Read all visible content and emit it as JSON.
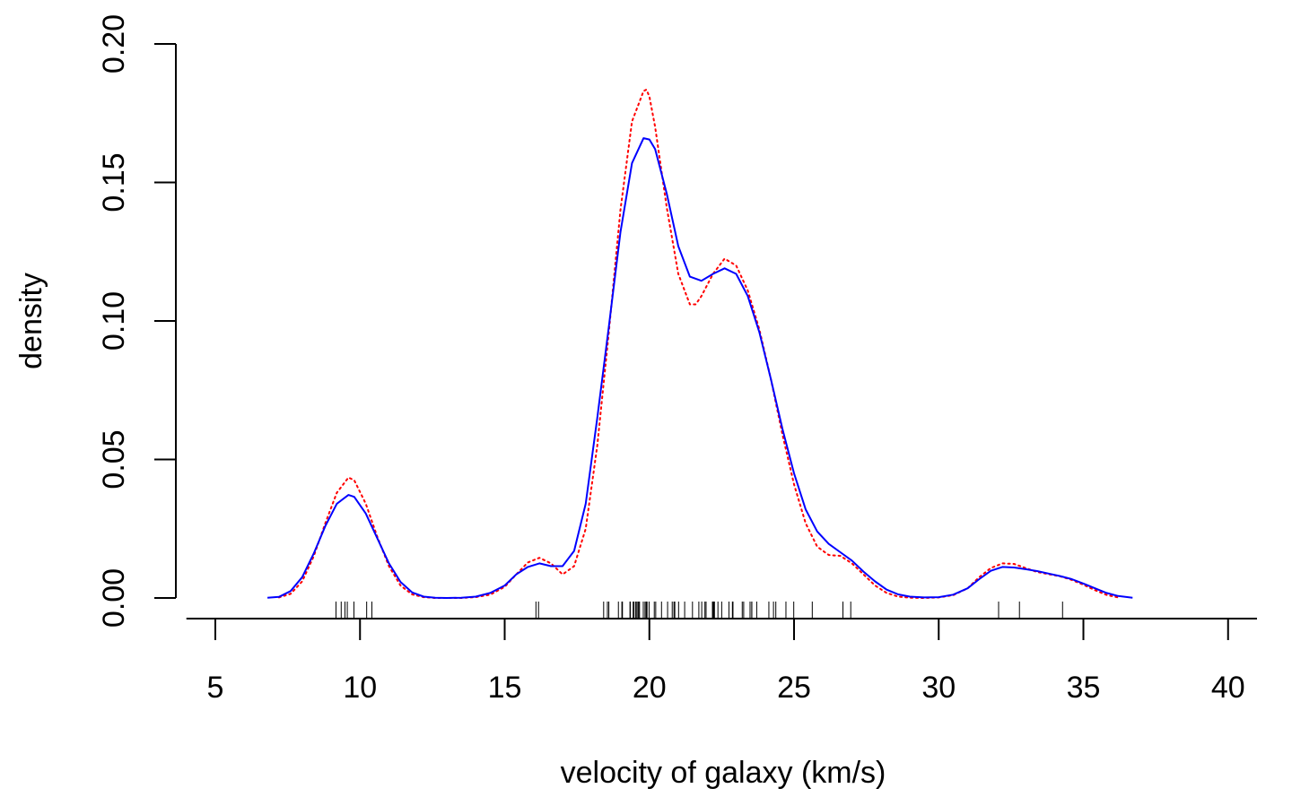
{
  "chart_data": {
    "type": "line",
    "title": "",
    "xlabel": "velocity of galaxy (km/s)",
    "ylabel": "density",
    "xlim": [
      4,
      41
    ],
    "ylim": [
      0,
      0.2
    ],
    "x_ticks": [
      5,
      10,
      15,
      20,
      25,
      30,
      35,
      40
    ],
    "x_tick_labels": [
      "5",
      "10",
      "15",
      "20",
      "25",
      "30",
      "35",
      "40"
    ],
    "y_ticks": [
      0.0,
      0.05,
      0.1,
      0.15,
      0.2
    ],
    "y_tick_labels": [
      "0.00",
      "0.05",
      "0.10",
      "0.15",
      "0.20"
    ],
    "grid": false,
    "legend": "none",
    "colors": {
      "series_solid": "#0000ff",
      "series_dotted": "#ff0000",
      "axes": "#000000"
    },
    "series": [
      {
        "style": "solid",
        "color": "#0000ff",
        "x": [
          6.8,
          7.2,
          7.6,
          8.0,
          8.4,
          8.8,
          9.2,
          9.6,
          9.8,
          10.2,
          10.6,
          11.0,
          11.4,
          11.8,
          12.2,
          12.6,
          13.0,
          13.5,
          14.0,
          14.5,
          15.0,
          15.4,
          15.8,
          16.2,
          16.6,
          17.0,
          17.4,
          17.8,
          18.2,
          18.6,
          19.0,
          19.4,
          19.8,
          20.0,
          20.2,
          20.6,
          21.0,
          21.4,
          21.8,
          22.2,
          22.6,
          23.0,
          23.4,
          23.8,
          24.2,
          24.6,
          25.0,
          25.4,
          25.8,
          26.2,
          26.6,
          27.0,
          27.4,
          27.8,
          28.2,
          28.6,
          29.0,
          29.5,
          30.0,
          30.5,
          31.0,
          31.4,
          31.8,
          32.2,
          32.6,
          33.0,
          33.4,
          33.8,
          34.2,
          34.6,
          35.0,
          35.4,
          35.8,
          36.2,
          36.7
        ],
        "y": [
          0.0001,
          0.0004,
          0.0025,
          0.0075,
          0.016,
          0.026,
          0.034,
          0.0372,
          0.0365,
          0.0305,
          0.0215,
          0.0125,
          0.0058,
          0.002,
          0.0005,
          0.0001,
          0.0,
          0.0001,
          0.0005,
          0.0018,
          0.0045,
          0.0085,
          0.0112,
          0.0125,
          0.0115,
          0.0115,
          0.017,
          0.034,
          0.065,
          0.098,
          0.132,
          0.157,
          0.166,
          0.1655,
          0.162,
          0.146,
          0.127,
          0.116,
          0.1145,
          0.117,
          0.119,
          0.117,
          0.109,
          0.096,
          0.079,
          0.061,
          0.045,
          0.032,
          0.024,
          0.0195,
          0.0165,
          0.0135,
          0.0095,
          0.006,
          0.003,
          0.0013,
          0.0005,
          0.0002,
          0.0003,
          0.0012,
          0.0035,
          0.0068,
          0.0098,
          0.0112,
          0.011,
          0.0104,
          0.0097,
          0.0088,
          0.0079,
          0.0068,
          0.0052,
          0.0035,
          0.0018,
          0.0007,
          0.0001
        ]
      },
      {
        "style": "dotted",
        "color": "#ff0000",
        "x": [
          7.2,
          7.6,
          8.0,
          8.4,
          8.8,
          9.2,
          9.6,
          9.8,
          10.2,
          10.6,
          11.0,
          11.4,
          11.8,
          12.2,
          12.6,
          13.0,
          13.5,
          14.0,
          14.5,
          15.0,
          15.4,
          15.8,
          16.2,
          16.6,
          17.0,
          17.4,
          17.8,
          18.2,
          18.6,
          19.0,
          19.4,
          19.8,
          19.9,
          20.0,
          20.2,
          20.6,
          21.0,
          21.4,
          21.6,
          21.8,
          22.2,
          22.6,
          23.0,
          23.4,
          23.8,
          24.2,
          24.6,
          25.0,
          25.4,
          25.8,
          26.2,
          26.6,
          27.0,
          27.4,
          27.8,
          28.2,
          28.6,
          29.0,
          29.5,
          30.0,
          30.5,
          31.0,
          31.4,
          31.8,
          32.2,
          32.6,
          33.0,
          33.4,
          33.8,
          34.2,
          34.6,
          35.0,
          35.4,
          35.8,
          36.2
        ],
        "y": [
          0.0002,
          0.0015,
          0.006,
          0.015,
          0.027,
          0.038,
          0.0435,
          0.0425,
          0.034,
          0.022,
          0.0115,
          0.0045,
          0.0013,
          0.0003,
          0.0,
          0.0,
          0.0,
          0.0003,
          0.0012,
          0.004,
          0.0085,
          0.0128,
          0.0145,
          0.0125,
          0.0085,
          0.0115,
          0.025,
          0.055,
          0.096,
          0.14,
          0.172,
          0.183,
          0.1835,
          0.181,
          0.17,
          0.141,
          0.117,
          0.106,
          0.106,
          0.109,
          0.117,
          0.1225,
          0.12,
          0.111,
          0.097,
          0.079,
          0.059,
          0.041,
          0.027,
          0.0185,
          0.0155,
          0.0152,
          0.0125,
          0.0085,
          0.0045,
          0.0018,
          0.0005,
          0.0001,
          0.0,
          0.0002,
          0.001,
          0.0035,
          0.0075,
          0.0108,
          0.0125,
          0.0123,
          0.0108,
          0.0094,
          0.0086,
          0.0078,
          0.0065,
          0.0048,
          0.0028,
          0.0011,
          0.0002
        ]
      }
    ],
    "rug": [
      9.17,
      9.35,
      9.48,
      9.56,
      9.79,
      10.23,
      10.41,
      16.08,
      16.17,
      18.42,
      18.55,
      18.6,
      18.93,
      19.05,
      19.07,
      19.33,
      19.34,
      19.44,
      19.47,
      19.53,
      19.54,
      19.55,
      19.6,
      19.63,
      19.66,
      19.79,
      19.85,
      19.86,
      19.9,
      19.91,
      19.92,
      19.99,
      20.17,
      20.22,
      20.42,
      20.63,
      20.79,
      20.85,
      20.88,
      21.01,
      21.22,
      21.49,
      21.71,
      21.81,
      21.92,
      21.96,
      22.18,
      22.19,
      22.21,
      22.24,
      22.25,
      22.37,
      22.5,
      22.75,
      22.87,
      22.89,
      23.21,
      23.26,
      23.48,
      23.54,
      23.54,
      23.71,
      24.13,
      24.29,
      24.37,
      24.72,
      24.99,
      25.63,
      26.69,
      26.96,
      32.07,
      32.79,
      34.28
    ]
  }
}
